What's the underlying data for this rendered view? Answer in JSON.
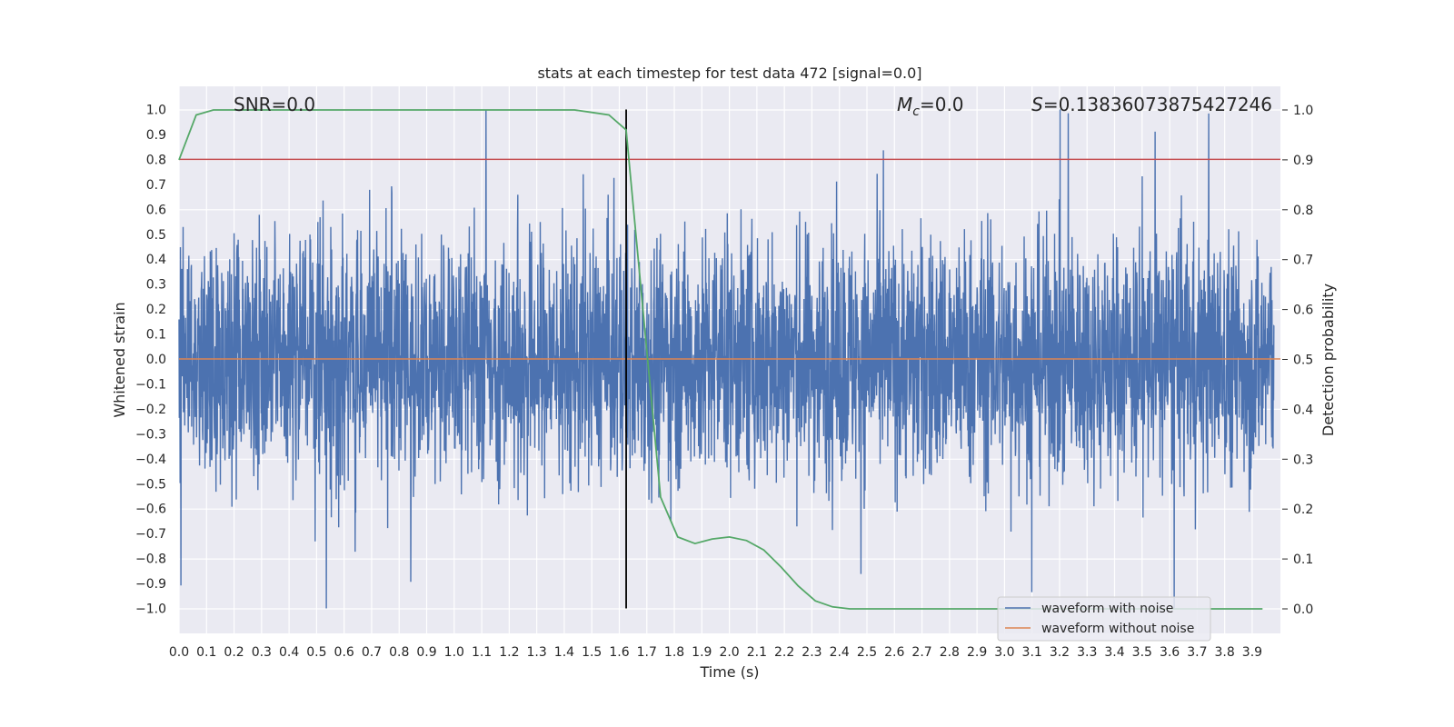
{
  "chart_data": {
    "type": "line",
    "title": "stats at each timestep for test data 472 [signal=0.0]",
    "xlabel": "Time (s)",
    "ylabel": "Whitened strain",
    "ylabel_right": "Detection probability",
    "xlim": [
      0.0,
      4.0
    ],
    "ylim": [
      -1.1,
      1.1
    ],
    "ylim_right": [
      -0.05,
      1.05
    ],
    "grid": true,
    "x_ticks": [
      "0.0",
      "0.1",
      "0.2",
      "0.3",
      "0.4",
      "0.5",
      "0.6",
      "0.7",
      "0.8",
      "0.9",
      "1.0",
      "1.1",
      "1.2",
      "1.3",
      "1.4",
      "1.5",
      "1.6",
      "1.7",
      "1.8",
      "1.9",
      "2.0",
      "2.1",
      "2.2",
      "2.3",
      "2.4",
      "2.5",
      "2.6",
      "2.7",
      "2.8",
      "2.9",
      "3.0",
      "3.1",
      "3.2",
      "3.3",
      "3.4",
      "3.5",
      "3.6",
      "3.7",
      "3.8",
      "3.9"
    ],
    "y_ticks": [
      "1.0",
      "0.9",
      "0.8",
      "0.7",
      "0.6",
      "0.5",
      "0.4",
      "0.3",
      "0.2",
      "0.1",
      "0.0",
      "−0.1",
      "−0.2",
      "−0.3",
      "−0.4",
      "−0.5",
      "−0.6",
      "−0.7",
      "−0.8",
      "−0.9",
      "−1.0"
    ],
    "y_ticks_right": [
      "1.0",
      "0.9",
      "0.8",
      "0.7",
      "0.6",
      "0.5",
      "0.4",
      "0.3",
      "0.2",
      "0.1",
      "0.0"
    ],
    "annotations": {
      "snr": "SNR=0.0",
      "mc": "=0.0",
      "mc_symbol": "M",
      "mc_sub": "c",
      "s": "=0.13836073875427246",
      "s_symbol": "S"
    },
    "legend": {
      "placement": "lower-right",
      "entries": [
        "waveform with noise",
        "waveform without noise"
      ]
    },
    "series": [
      {
        "name": "waveform with noise",
        "color": "#4c72b0",
        "axis": "left",
        "kind": "noise",
        "x_range": [
          0.0,
          3.98
        ],
        "y_range": [
          -1.0,
          1.0
        ]
      },
      {
        "name": "waveform without noise",
        "color": "#dd8452",
        "axis": "left",
        "constant": 0.0
      },
      {
        "name": "detection probability",
        "color": "#55a868",
        "axis": "right",
        "x_step": 0.0625,
        "values": [
          0.9,
          0.99,
          1.0,
          1.0,
          1.0,
          1.0,
          1.0,
          1.0,
          1.0,
          1.0,
          1.0,
          1.0,
          1.0,
          1.0,
          1.0,
          1.0,
          1.0,
          1.0,
          1.0,
          1.0,
          1.0,
          1.0,
          1.0,
          1.0,
          0.995,
          0.99,
          0.96,
          0.59,
          0.224,
          0.144,
          0.131,
          0.14,
          0.144,
          0.137,
          0.118,
          0.084,
          0.046,
          0.016,
          0.004,
          0,
          0,
          0,
          0,
          0,
          0,
          0,
          0,
          0,
          0,
          0,
          0,
          0,
          0,
          0,
          0,
          0,
          0,
          0,
          0,
          0,
          0,
          0,
          0,
          0
        ]
      },
      {
        "name": "threshold",
        "color": "#c44e52",
        "axis": "left",
        "constant": 0.8
      },
      {
        "name": "marker",
        "color": "#000000",
        "axis": "left",
        "vertical_at": 1.625,
        "y_range": [
          -1.0,
          1.0
        ]
      }
    ]
  }
}
